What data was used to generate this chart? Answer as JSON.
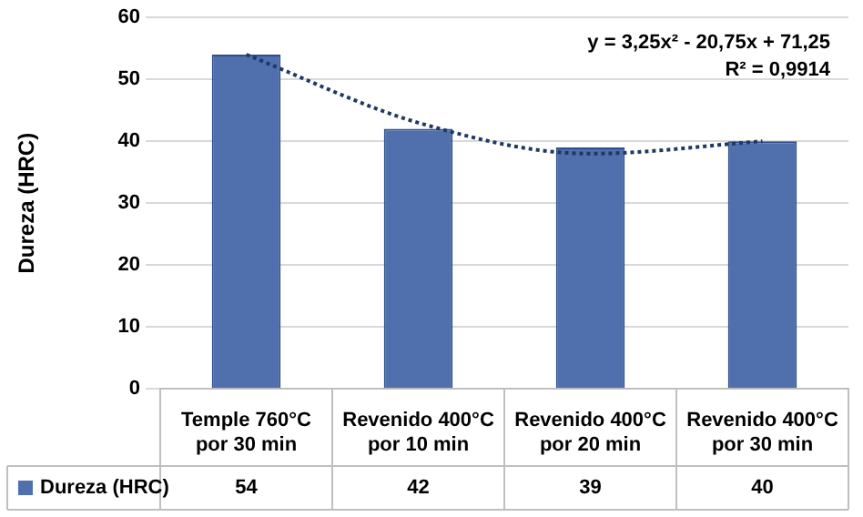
{
  "chart_data": {
    "type": "bar",
    "ylabel": "Dureza (HRC)",
    "categories": [
      "Temple 760°C por 30 min",
      "Revenido 400°C por 10 min",
      "Revenido 400°C por 20 min",
      "Revenido 400°C por 30 min"
    ],
    "series": [
      {
        "name": "Dureza (HRC)",
        "color": "#4f6fad",
        "values": [
          54,
          42,
          39,
          40
        ],
        "value_labels": [
          "54",
          "42",
          "39",
          "40"
        ]
      },
      {
        "type": "line",
        "color": "#1f3864",
        "line_style": "dotted",
        "values": [
          54,
          43,
          38,
          40
        ]
      }
    ],
    "ylim": [
      0,
      60
    ],
    "yticks": [
      0,
      10,
      20,
      30,
      40,
      50,
      60
    ],
    "grid": "y",
    "legend": "bottom",
    "annotations": [
      "y = 3,25x² - 20,75x + 71,25",
      "R² = 0,9914"
    ]
  }
}
